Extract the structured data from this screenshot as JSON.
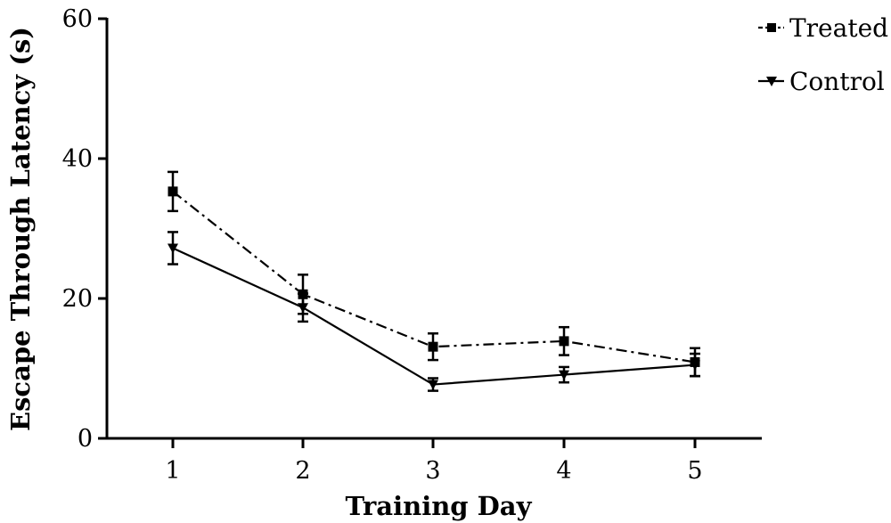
{
  "chart_data": {
    "type": "line",
    "xlabel": "Training Day",
    "ylabel": "Escape Through Latency (s)",
    "x": [
      1,
      2,
      3,
      4,
      5
    ],
    "xticks": [
      "1",
      "2",
      "3",
      "4",
      "5"
    ],
    "ylim": [
      0,
      60
    ],
    "yticks": [
      "0",
      "20",
      "40",
      "60"
    ],
    "grid": false,
    "legend_position": "top-right",
    "series": [
      {
        "name": "Treated",
        "marker": "square",
        "line_style": "dash-dot",
        "color": "#000000",
        "values": [
          35.3,
          20.6,
          13.1,
          13.9,
          10.9
        ],
        "error": [
          2.8,
          2.8,
          1.9,
          2.0,
          2.0
        ]
      },
      {
        "name": "Control",
        "marker": "triangle-down",
        "line_style": "solid",
        "color": "#000000",
        "values": [
          27.2,
          18.7,
          7.7,
          9.1,
          10.5
        ],
        "error": [
          2.3,
          2.0,
          0.9,
          1.1,
          1.6
        ]
      }
    ]
  }
}
